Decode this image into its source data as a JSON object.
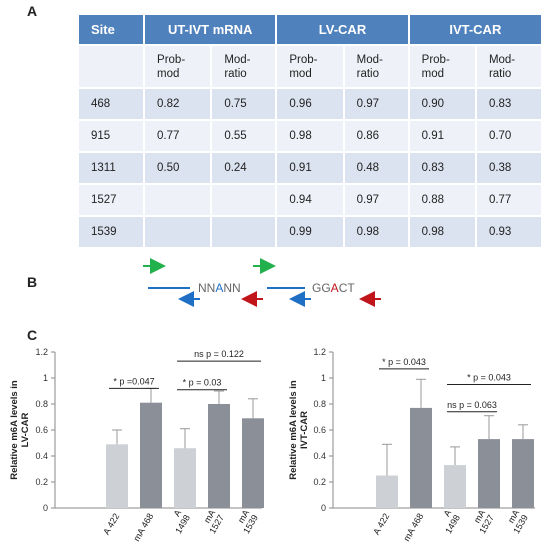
{
  "panels": {
    "a": "A",
    "b": "B",
    "c": "C"
  },
  "table": {
    "header": [
      "Site",
      "UT-IVT mRNA",
      "LV-CAR",
      "IVT-CAR"
    ],
    "subheader": [
      "",
      "Prob-\nmod",
      "Mod-\nratio",
      "Prob-\nmod",
      "Mod-\nratio",
      "Prob-\nmod",
      "Mod-\nratio"
    ],
    "rows": [
      [
        "468",
        "0.82",
        "0.75",
        "0.96",
        "0.97",
        "0.90",
        "0.83"
      ],
      [
        "915",
        "0.77",
        "0.55",
        "0.98",
        "0.86",
        "0.91",
        "0.70"
      ],
      [
        "1311",
        "0.50",
        "0.24",
        "0.91",
        "0.48",
        "0.83",
        "0.38"
      ],
      [
        "1527",
        "",
        "",
        "0.94",
        "0.97",
        "0.88",
        "0.77"
      ],
      [
        "1539",
        "",
        "",
        "0.99",
        "0.98",
        "0.98",
        "0.93"
      ]
    ]
  },
  "diagram": {
    "motif1": [
      "NN",
      "A",
      "NN"
    ],
    "motif2": [
      "GG",
      "A",
      "CT"
    ],
    "colors": {
      "green": "#22b14c",
      "blue": "#1f6fc5",
      "red": "#c0151b",
      "gray": "#666666"
    }
  },
  "chart_data": [
    {
      "type": "bar",
      "ylabel": "Relative  m6A levels in\nLV-CAR",
      "ylim": [
        0,
        1.2
      ],
      "yticks": [
        "0",
        "0.2",
        "0.4",
        "0.6",
        "0.8",
        "1",
        "1.2"
      ],
      "categories": [
        "A 422",
        "mA 468",
        "A\n1498",
        "mA\n1527",
        "mA\n1539"
      ],
      "values": [
        0.49,
        0.81,
        0.46,
        0.8,
        0.69
      ],
      "errors": [
        0.11,
        0.11,
        0.15,
        0.1,
        0.15
      ],
      "bar_colors": [
        "#cdd1d6",
        "#8a8f98",
        "#cdd1d6",
        "#8a8f98",
        "#8a8f98"
      ],
      "annotations": [
        {
          "text": "* p =0.047",
          "from": 0,
          "to": 1,
          "y": 0.92
        },
        {
          "text": "* p = 0.03",
          "from": 2,
          "to": 3,
          "y": 0.91
        },
        {
          "text": "ns p = 0.122",
          "from": 2,
          "to": 4,
          "y": 1.13
        }
      ]
    },
    {
      "type": "bar",
      "ylabel": "Relative m6A levels in\nIVT-CAR",
      "ylim": [
        0,
        1.2
      ],
      "yticks": [
        "0",
        "0.2",
        "0.4",
        "0.6",
        "0.8",
        "1",
        "1.2"
      ],
      "categories": [
        "A 422",
        "mA 468",
        "A\n1498",
        "mA\n1527",
        "mA\n1539"
      ],
      "values": [
        0.25,
        0.77,
        0.33,
        0.53,
        0.53
      ],
      "errors": [
        0.24,
        0.22,
        0.14,
        0.18,
        0.11
      ],
      "bar_colors": [
        "#cdd1d6",
        "#8a8f98",
        "#cdd1d6",
        "#8a8f98",
        "#8a8f98"
      ],
      "annotations": [
        {
          "text": "* p = 0.043",
          "from": 0,
          "to": 1,
          "y": 1.07
        },
        {
          "text": "ns p = 0.063",
          "from": 2,
          "to": 3,
          "y": 0.74
        },
        {
          "text": "* p = 0.043",
          "from": 2,
          "to": 4,
          "y": 0.95
        }
      ]
    }
  ]
}
